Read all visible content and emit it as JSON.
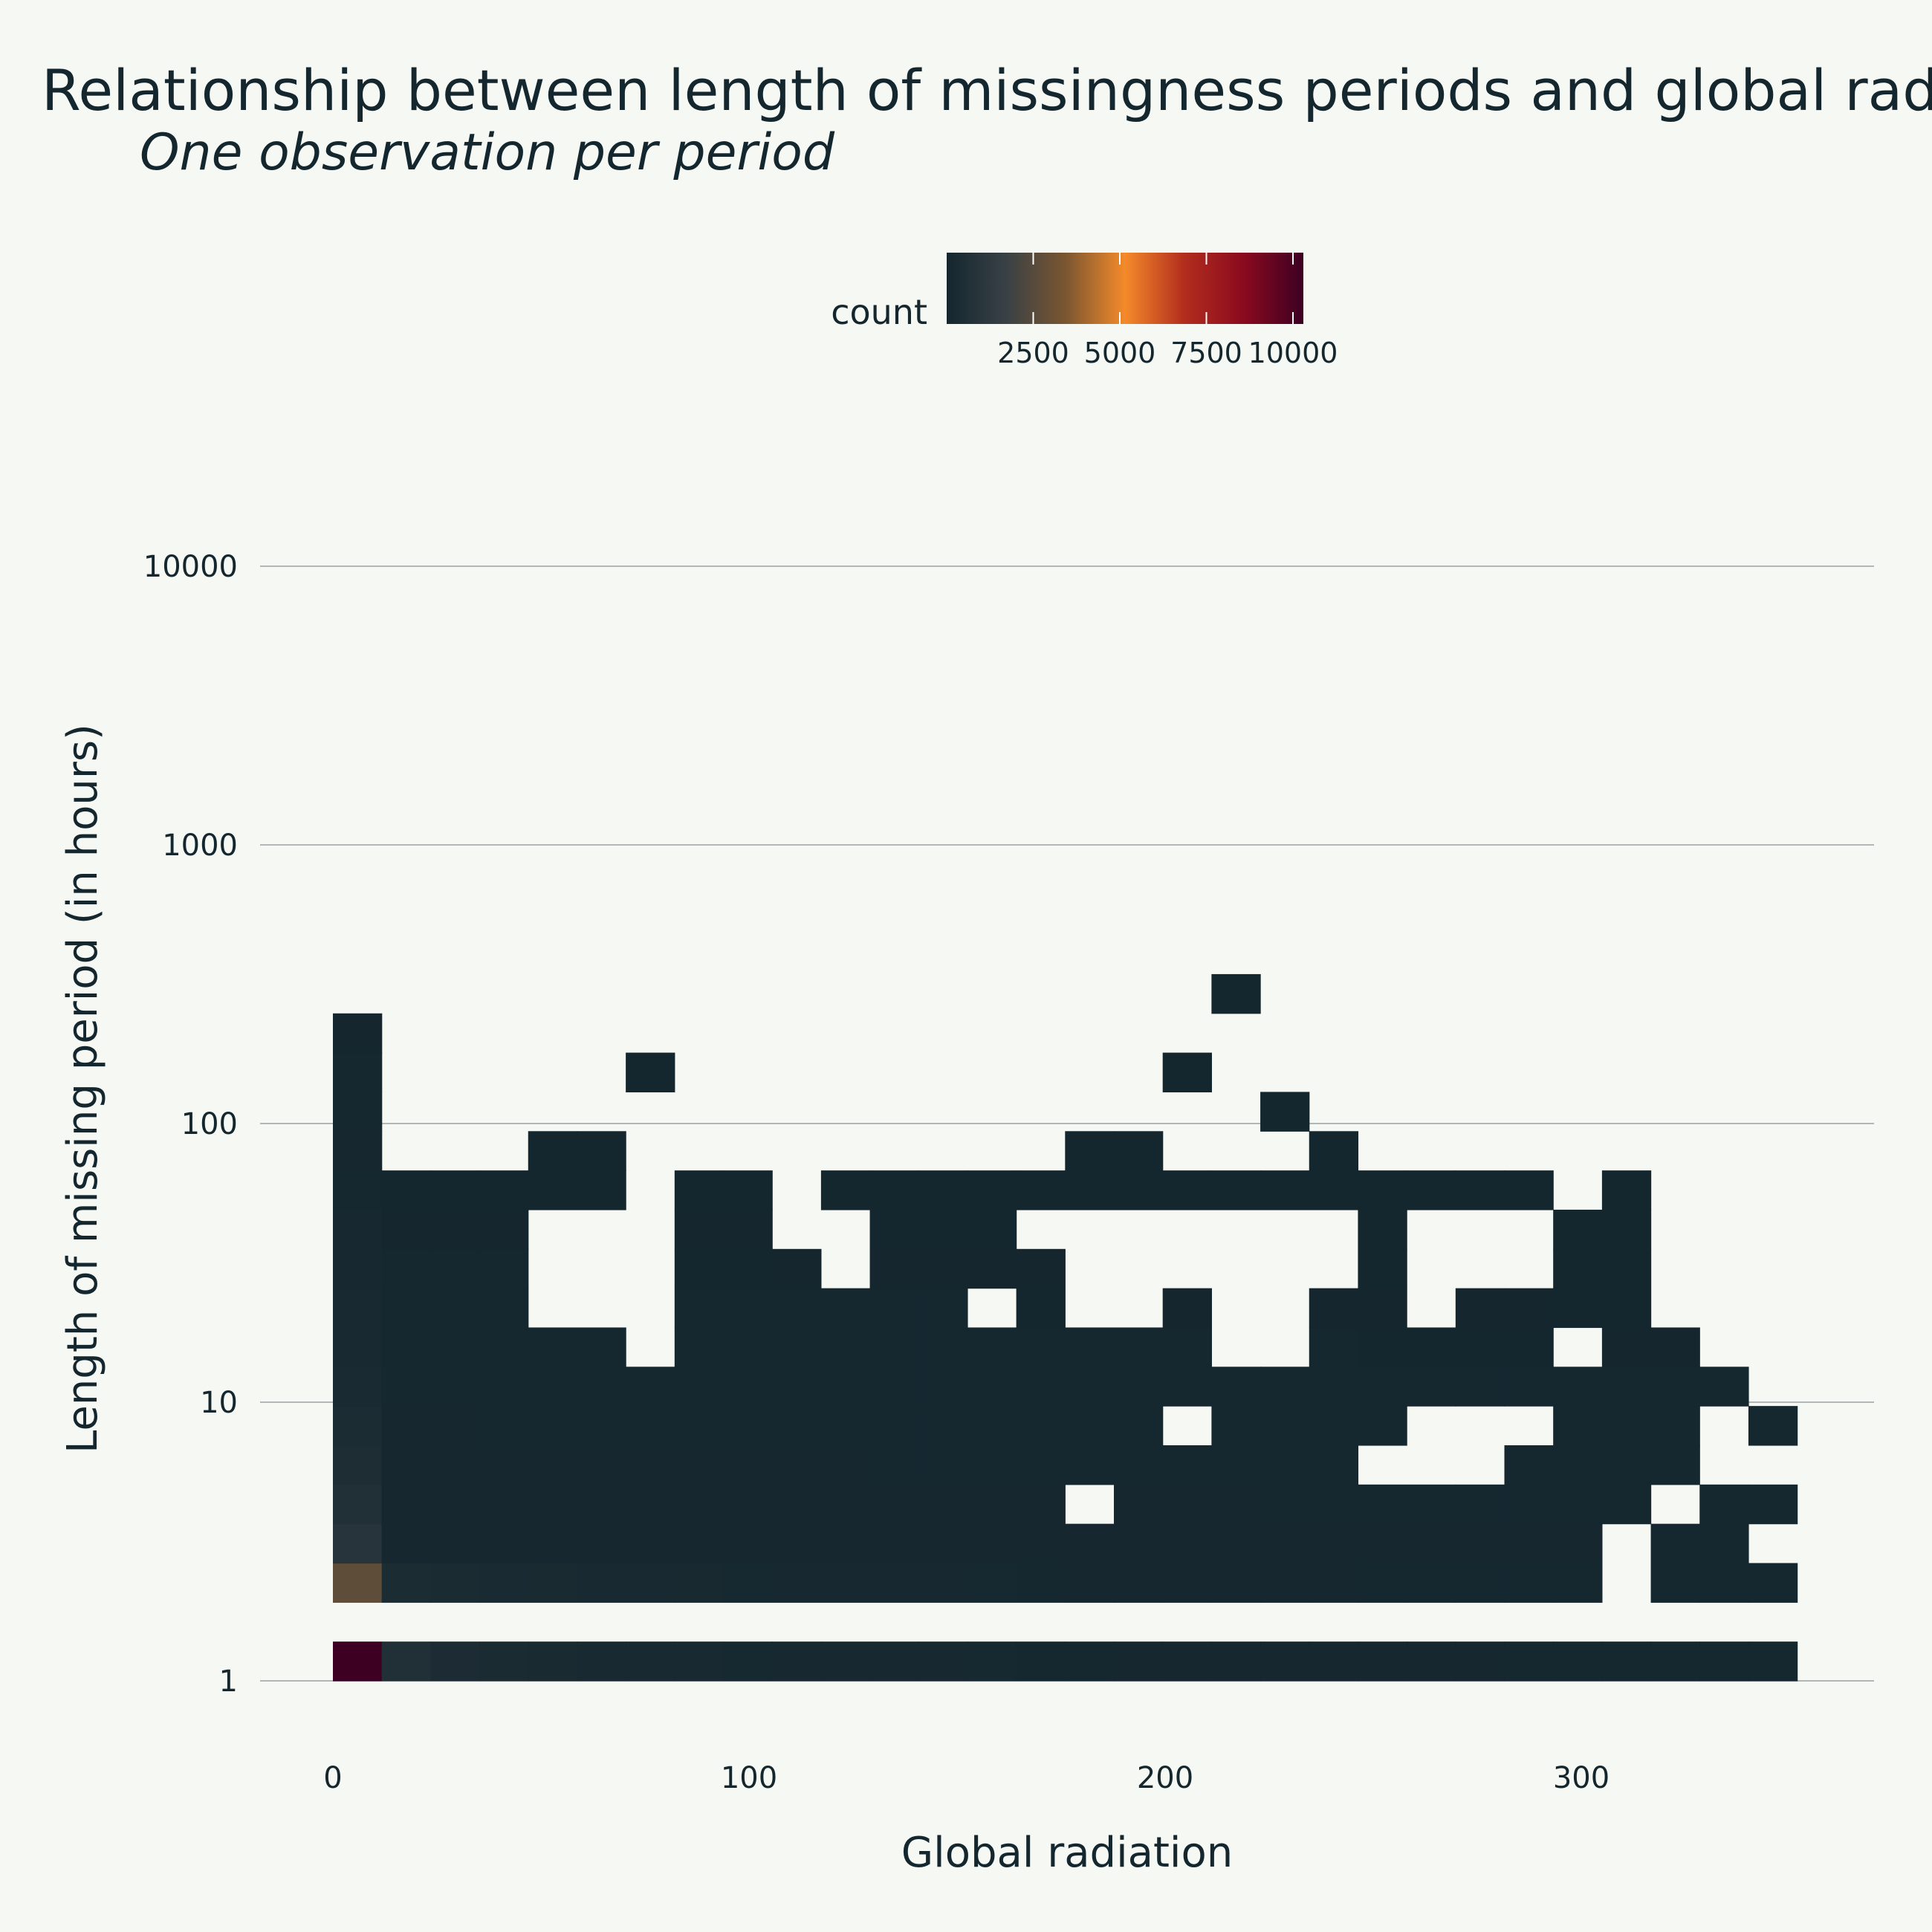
{
  "chart_data": {
    "type": "heatmap",
    "title": "Relationship between length of missingness periods and global radiation",
    "subtitle": "One observation per period",
    "xlabel": "Global radiation",
    "ylabel": "Length of missing period (in hours)",
    "x_ticks": [
      "0",
      "100",
      "200",
      "300"
    ],
    "x_tick_values": [
      0,
      100,
      200,
      300
    ],
    "y_ticks": [
      "1",
      "10",
      "100",
      "1000",
      "10000"
    ],
    "y_tick_values": [
      1,
      10,
      100,
      1000,
      10000
    ],
    "y_scale": "log10",
    "xlim": [
      -17.5,
      370
    ],
    "ylim_log10": [
      -0.08,
      2.25
    ],
    "grid": "horizontal major lines only",
    "legend": {
      "title": "count",
      "placement": "top-center",
      "ticks": [
        "2500",
        "5000",
        "7500",
        "10000"
      ],
      "tick_values": [
        2500,
        5000,
        7500,
        10000
      ],
      "range": [
        0,
        10300
      ],
      "colors": [
        "#14262e",
        "#394146",
        "#7a5630",
        "#f48a2b",
        "#b22d1d",
        "#8a0a1f",
        "#3d0023"
      ]
    },
    "bin_x_width": 11.73,
    "bin_x_start": 0,
    "bin_log10_height": 0.1409,
    "bin_log10_start": 0,
    "bins_note": "columns indexed 0..29 along x, rows indexed 0..16 along log10(y)",
    "column_tops": [
      16,
      12,
      11,
      12,
      9,
      8,
      7,
      12,
      11,
      10,
      9,
      11,
      12,
      12,
      10,
      8,
      8,
      9,
      7,
      8,
      9,
      12,
      8,
      9,
      9,
      11,
      12,
      8,
      7,
      6
    ],
    "empty_cells": [
      [
        4,
        10
      ],
      [
        4,
        9
      ],
      [
        6,
        10
      ],
      [
        13,
        9
      ],
      [
        17,
        6
      ],
      [
        15,
        4
      ],
      [
        21,
        5
      ],
      [
        29,
        5
      ],
      [
        22,
        6
      ],
      [
        23,
        6
      ],
      [
        24,
        6
      ],
      [
        22,
        5
      ],
      [
        23,
        5
      ],
      [
        28,
        6
      ],
      [
        28,
        5
      ],
      [
        27,
        4
      ],
      [
        26,
        3
      ],
      [
        26,
        2
      ],
      [
        26,
        1
      ],
      [
        29,
        3
      ],
      [
        29,
        1
      ],
      [
        19,
        8
      ],
      [
        25,
        8
      ]
    ],
    "extra_cells": [
      [
        0,
        13
      ],
      [
        0,
        12
      ],
      [
        0,
        14
      ],
      [
        0,
        15
      ],
      [
        0,
        16
      ],
      [
        1,
        12
      ],
      [
        2,
        12
      ],
      [
        3,
        12
      ],
      [
        4,
        12
      ],
      [
        5,
        12
      ],
      [
        7,
        12
      ],
      [
        8,
        12
      ],
      [
        10,
        12
      ],
      [
        11,
        12
      ],
      [
        13,
        12
      ],
      [
        14,
        12
      ],
      [
        15,
        12
      ],
      [
        16,
        12
      ],
      [
        17,
        12
      ],
      [
        18,
        12
      ],
      [
        19,
        12
      ],
      [
        20,
        12
      ],
      [
        21,
        12
      ],
      [
        22,
        12
      ],
      [
        23,
        12
      ],
      [
        24,
        12
      ],
      [
        4,
        13
      ],
      [
        5,
        13
      ],
      [
        6,
        15
      ],
      [
        15,
        13
      ],
      [
        16,
        13
      ],
      [
        19,
        14
      ],
      [
        17,
        15
      ],
      [
        18,
        17
      ],
      [
        20,
        13
      ],
      [
        26,
        10
      ],
      [
        30,
        9
      ]
    ],
    "count_row1": [
      10300,
      600,
      400,
      300,
      250,
      220,
      200,
      180,
      160,
      150,
      140,
      130,
      120,
      110,
      105,
      100,
      95,
      90,
      85,
      80,
      78,
      75,
      72,
      70,
      68,
      66,
      64,
      62,
      60,
      58
    ],
    "count_row2": [
      2700,
      350,
      300,
      260,
      230,
      210,
      190,
      170,
      160,
      150,
      140,
      130,
      120,
      110,
      100,
      95,
      90,
      85,
      80,
      75,
      70,
      68,
      66,
      64,
      62,
      60,
      58,
      56,
      54,
      52
    ],
    "count_col0_upper": [
      900,
      600,
      450,
      350,
      280,
      220,
      180,
      150,
      120,
      100,
      80,
      60,
      40
    ]
  }
}
